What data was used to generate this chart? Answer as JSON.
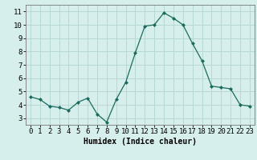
{
  "x": [
    0,
    1,
    2,
    3,
    4,
    5,
    6,
    7,
    8,
    9,
    10,
    11,
    12,
    13,
    14,
    15,
    16,
    17,
    18,
    19,
    20,
    21,
    22,
    23
  ],
  "y": [
    4.6,
    4.4,
    3.9,
    3.8,
    3.6,
    4.2,
    4.5,
    3.3,
    2.7,
    4.4,
    5.7,
    7.9,
    9.9,
    10.0,
    10.9,
    10.5,
    10.0,
    8.6,
    7.3,
    5.4,
    5.3,
    5.2,
    4.0,
    3.9
  ],
  "line_color": "#1a6b5e",
  "marker": "D",
  "marker_size": 2.0,
  "bg_color": "#d6efed",
  "grid_color": "#b8d8d5",
  "xlabel": "Humidex (Indice chaleur)",
  "ylim": [
    2.5,
    11.5
  ],
  "xlim": [
    -0.5,
    23.5
  ],
  "yticks": [
    3,
    4,
    5,
    6,
    7,
    8,
    9,
    10,
    11
  ],
  "xticks": [
    0,
    1,
    2,
    3,
    4,
    5,
    6,
    7,
    8,
    9,
    10,
    11,
    12,
    13,
    14,
    15,
    16,
    17,
    18,
    19,
    20,
    21,
    22,
    23
  ],
  "label_fontsize": 7,
  "tick_fontsize": 6.5
}
